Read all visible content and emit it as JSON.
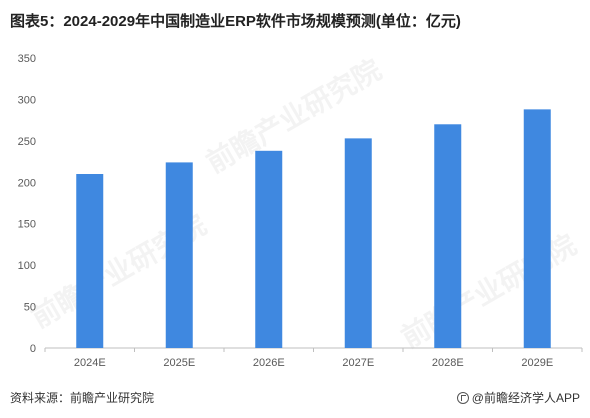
{
  "title": "图表5：2024-2029年中国制造业ERP软件市场规模预测(单位：亿元)",
  "source": "资料来源：前瞻产业研究院",
  "brand": "@前瞻经济学人APP",
  "watermark": "前瞻产业研究院",
  "colors": {
    "bar": "#3F88E0",
    "axis": "#bfbfbf",
    "text": "#595959"
  },
  "chart_data": {
    "type": "bar",
    "categories": [
      "2024E",
      "2025E",
      "2026E",
      "2027E",
      "2028E",
      "2029E"
    ],
    "values": [
      210,
      224,
      238,
      253,
      270,
      288
    ],
    "ylim": [
      0,
      350
    ],
    "yticks": [
      0,
      50,
      100,
      150,
      200,
      250,
      300,
      350
    ],
    "grid": false
  }
}
